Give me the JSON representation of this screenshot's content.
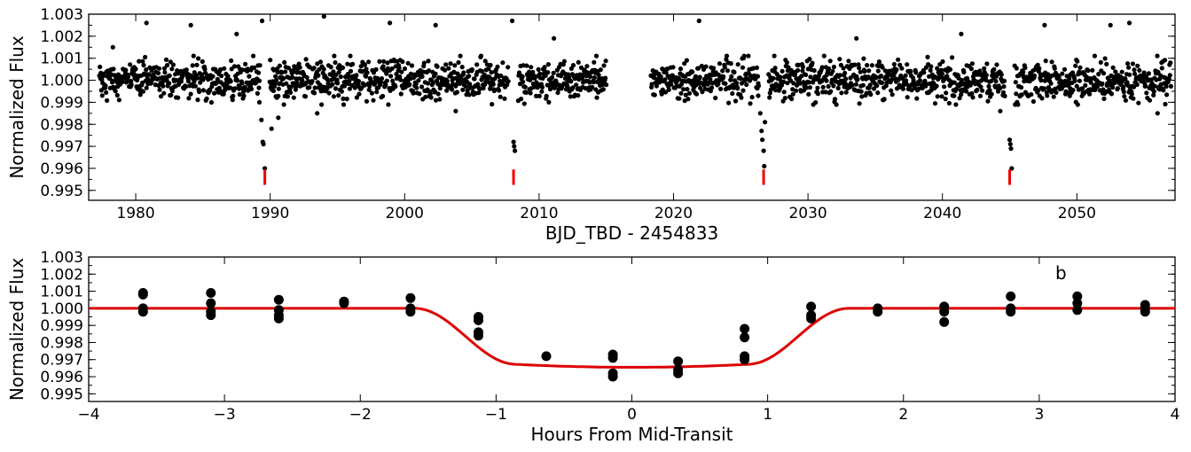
{
  "figure": {
    "kind": "light curve with phase-folded transit"
  },
  "chart_data": [
    {
      "type": "scatter",
      "xlabel": "BJD_TBD - 2454833",
      "ylabel": "Normalized Flux",
      "xlim": [
        1976.5,
        2057.3
      ],
      "ylim": [
        0.99455,
        1.003
      ],
      "xticks": [
        1980,
        1990,
        2000,
        2010,
        2020,
        2030,
        2040,
        2050
      ],
      "xtick_labels": [
        "1980",
        "1990",
        "2000",
        "2010",
        "2020",
        "2030",
        "2040",
        "2050"
      ],
      "yticks": [
        0.995,
        0.996,
        0.997,
        0.998,
        0.999,
        1.0,
        1.001,
        1.002,
        1.003
      ],
      "ytick_labels": [
        "0.995",
        "0.996",
        "0.997",
        "0.998",
        "0.999",
        "1.000",
        "1.001",
        "1.002",
        "1.003"
      ],
      "baseline_flux": 1.0,
      "scatter_sigma": 0.0005,
      "data_gap": [
        2015.0,
        2018.3
      ],
      "series": [
        {
          "values_description": "long-cadence photometry, ~1 point per 0.03 d",
          "transit_points": [
            [
              1989.2,
              0.999
            ],
            [
              1989.35,
              0.9982
            ],
            [
              1989.45,
              0.9972
            ],
            [
              1989.5,
              0.9971
            ],
            [
              1989.6,
              0.996
            ],
            [
              1990.1,
              0.9978
            ],
            [
              1990.6,
              0.9983
            ],
            [
              2008.1,
              0.9972
            ],
            [
              2008.15,
              0.997
            ],
            [
              2008.2,
              0.9968
            ],
            [
              2026.3,
              0.9993
            ],
            [
              2026.45,
              0.9985
            ],
            [
              2026.55,
              0.9977
            ],
            [
              2026.6,
              0.9973
            ],
            [
              2026.7,
              0.9968
            ],
            [
              2026.75,
              0.9961
            ],
            [
              2026.8,
              0.9981
            ],
            [
              2045.0,
              0.9973
            ],
            [
              2045.05,
              0.9971
            ],
            [
              2045.1,
              0.9969
            ],
            [
              2045.15,
              0.996
            ]
          ],
          "outliers": [
            [
              1978.3,
              1.0015
            ],
            [
              1980.8,
              1.0026
            ],
            [
              1984.1,
              1.0025
            ],
            [
              1987.5,
              1.0021
            ],
            [
              1989.4,
              1.0027
            ],
            [
              1994.0,
              1.0029
            ],
            [
              1998.9,
              1.0026
            ],
            [
              2002.3,
              1.0025
            ],
            [
              2008.0,
              1.0027
            ],
            [
              2011.1,
              1.0019
            ],
            [
              2021.9,
              1.0027
            ],
            [
              2033.6,
              1.0019
            ],
            [
              2041.4,
              1.0021
            ],
            [
              2047.6,
              1.0025
            ],
            [
              2052.5,
              1.0025
            ],
            [
              2053.9,
              1.0026
            ],
            [
              1993.5,
              0.9985
            ],
            [
              2003.8,
              0.9986
            ],
            [
              2044.3,
              0.9986
            ],
            [
              2056.0,
              0.9985
            ]
          ]
        }
      ],
      "transit_markers": [
        1989.6,
        2008.1,
        2026.7,
        2045.0
      ],
      "marker_color": "#ee0000",
      "point_color": "#000000"
    },
    {
      "type": "scatter",
      "xlabel": "Hours From Mid-Transit",
      "ylabel": "Normalized Flux",
      "annotation": "b",
      "xlim": [
        -4,
        4
      ],
      "ylim": [
        0.99455,
        1.003
      ],
      "xticks": [
        -4,
        -3,
        -2,
        -1,
        0,
        1,
        2,
        3,
        4
      ],
      "xtick_labels": [
        "−4",
        "−3",
        "−2",
        "−1",
        "0",
        "1",
        "2",
        "3",
        "4"
      ],
      "yticks": [
        0.995,
        0.996,
        0.997,
        0.998,
        0.999,
        1.0,
        1.001,
        1.002,
        1.003
      ],
      "ytick_labels": [
        "0.995",
        "0.996",
        "0.997",
        "0.998",
        "0.999",
        "1.000",
        "1.001",
        "1.002",
        "1.003"
      ],
      "points": [
        [
          -3.6,
          1.0009
        ],
        [
          -3.6,
          1.0008
        ],
        [
          -3.6,
          1.0
        ],
        [
          -3.6,
          0.9998
        ],
        [
          -3.1,
          1.0009
        ],
        [
          -3.1,
          1.0003
        ],
        [
          -3.1,
          0.9998
        ],
        [
          -3.1,
          0.9996
        ],
        [
          -2.6,
          1.0005
        ],
        [
          -2.6,
          0.9999
        ],
        [
          -2.6,
          0.9996
        ],
        [
          -2.6,
          0.9994
        ],
        [
          -2.12,
          1.0004
        ],
        [
          -2.12,
          1.0003
        ],
        [
          -1.63,
          1.0006
        ],
        [
          -1.63,
          1.0
        ],
        [
          -1.63,
          0.9998
        ],
        [
          -1.13,
          0.9995
        ],
        [
          -1.13,
          0.9993
        ],
        [
          -1.13,
          0.9986
        ],
        [
          -1.13,
          0.9984
        ],
        [
          -0.63,
          0.9972
        ],
        [
          -0.14,
          0.9973
        ],
        [
          -0.14,
          0.9971
        ],
        [
          -0.14,
          0.9962
        ],
        [
          -0.14,
          0.996
        ],
        [
          0.34,
          0.9969
        ],
        [
          0.34,
          0.9964
        ],
        [
          0.34,
          0.9962
        ],
        [
          0.83,
          0.9988
        ],
        [
          0.83,
          0.9983
        ],
        [
          0.83,
          0.9972
        ],
        [
          0.83,
          0.997
        ],
        [
          1.32,
          1.0001
        ],
        [
          1.32,
          0.9996
        ],
        [
          1.32,
          0.9994
        ],
        [
          1.81,
          1.0
        ],
        [
          1.81,
          0.9998
        ],
        [
          2.3,
          1.0001
        ],
        [
          2.3,
          0.9998
        ],
        [
          2.3,
          0.9992
        ],
        [
          2.79,
          1.0007
        ],
        [
          2.79,
          1.0
        ],
        [
          2.79,
          0.9998
        ],
        [
          3.28,
          1.0007
        ],
        [
          3.28,
          1.0003
        ],
        [
          3.28,
          0.9999
        ],
        [
          3.78,
          1.0002
        ],
        [
          3.78,
          1.0
        ],
        [
          3.78,
          0.9998
        ]
      ],
      "model": {
        "description": "transit model",
        "depth": 0.00345,
        "t1": 1.6,
        "t2": 0.85,
        "color": "#dd0000"
      },
      "point_color": "#000000"
    }
  ]
}
